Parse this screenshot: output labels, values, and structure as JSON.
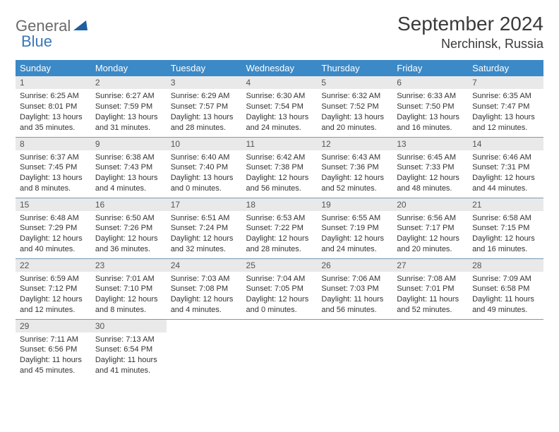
{
  "logo": {
    "text1": "General",
    "text2": "Blue"
  },
  "title": "September 2024",
  "location": "Nerchinsk, Russia",
  "day_headers": [
    "Sunday",
    "Monday",
    "Tuesday",
    "Wednesday",
    "Thursday",
    "Friday",
    "Saturday"
  ],
  "header_bg": "#3b89c7",
  "daynum_bg": "#e9e9e9",
  "row_border": "#7a99b2",
  "weeks": [
    [
      {
        "n": "1",
        "sr": "6:25 AM",
        "ss": "8:01 PM",
        "dl": "13 hours and 35 minutes."
      },
      {
        "n": "2",
        "sr": "6:27 AM",
        "ss": "7:59 PM",
        "dl": "13 hours and 31 minutes."
      },
      {
        "n": "3",
        "sr": "6:29 AM",
        "ss": "7:57 PM",
        "dl": "13 hours and 28 minutes."
      },
      {
        "n": "4",
        "sr": "6:30 AM",
        "ss": "7:54 PM",
        "dl": "13 hours and 24 minutes."
      },
      {
        "n": "5",
        "sr": "6:32 AM",
        "ss": "7:52 PM",
        "dl": "13 hours and 20 minutes."
      },
      {
        "n": "6",
        "sr": "6:33 AM",
        "ss": "7:50 PM",
        "dl": "13 hours and 16 minutes."
      },
      {
        "n": "7",
        "sr": "6:35 AM",
        "ss": "7:47 PM",
        "dl": "13 hours and 12 minutes."
      }
    ],
    [
      {
        "n": "8",
        "sr": "6:37 AM",
        "ss": "7:45 PM",
        "dl": "13 hours and 8 minutes."
      },
      {
        "n": "9",
        "sr": "6:38 AM",
        "ss": "7:43 PM",
        "dl": "13 hours and 4 minutes."
      },
      {
        "n": "10",
        "sr": "6:40 AM",
        "ss": "7:40 PM",
        "dl": "13 hours and 0 minutes."
      },
      {
        "n": "11",
        "sr": "6:42 AM",
        "ss": "7:38 PM",
        "dl": "12 hours and 56 minutes."
      },
      {
        "n": "12",
        "sr": "6:43 AM",
        "ss": "7:36 PM",
        "dl": "12 hours and 52 minutes."
      },
      {
        "n": "13",
        "sr": "6:45 AM",
        "ss": "7:33 PM",
        "dl": "12 hours and 48 minutes."
      },
      {
        "n": "14",
        "sr": "6:46 AM",
        "ss": "7:31 PM",
        "dl": "12 hours and 44 minutes."
      }
    ],
    [
      {
        "n": "15",
        "sr": "6:48 AM",
        "ss": "7:29 PM",
        "dl": "12 hours and 40 minutes."
      },
      {
        "n": "16",
        "sr": "6:50 AM",
        "ss": "7:26 PM",
        "dl": "12 hours and 36 minutes."
      },
      {
        "n": "17",
        "sr": "6:51 AM",
        "ss": "7:24 PM",
        "dl": "12 hours and 32 minutes."
      },
      {
        "n": "18",
        "sr": "6:53 AM",
        "ss": "7:22 PM",
        "dl": "12 hours and 28 minutes."
      },
      {
        "n": "19",
        "sr": "6:55 AM",
        "ss": "7:19 PM",
        "dl": "12 hours and 24 minutes."
      },
      {
        "n": "20",
        "sr": "6:56 AM",
        "ss": "7:17 PM",
        "dl": "12 hours and 20 minutes."
      },
      {
        "n": "21",
        "sr": "6:58 AM",
        "ss": "7:15 PM",
        "dl": "12 hours and 16 minutes."
      }
    ],
    [
      {
        "n": "22",
        "sr": "6:59 AM",
        "ss": "7:12 PM",
        "dl": "12 hours and 12 minutes."
      },
      {
        "n": "23",
        "sr": "7:01 AM",
        "ss": "7:10 PM",
        "dl": "12 hours and 8 minutes."
      },
      {
        "n": "24",
        "sr": "7:03 AM",
        "ss": "7:08 PM",
        "dl": "12 hours and 4 minutes."
      },
      {
        "n": "25",
        "sr": "7:04 AM",
        "ss": "7:05 PM",
        "dl": "12 hours and 0 minutes."
      },
      {
        "n": "26",
        "sr": "7:06 AM",
        "ss": "7:03 PM",
        "dl": "11 hours and 56 minutes."
      },
      {
        "n": "27",
        "sr": "7:08 AM",
        "ss": "7:01 PM",
        "dl": "11 hours and 52 minutes."
      },
      {
        "n": "28",
        "sr": "7:09 AM",
        "ss": "6:58 PM",
        "dl": "11 hours and 49 minutes."
      }
    ],
    [
      {
        "n": "29",
        "sr": "7:11 AM",
        "ss": "6:56 PM",
        "dl": "11 hours and 45 minutes."
      },
      {
        "n": "30",
        "sr": "7:13 AM",
        "ss": "6:54 PM",
        "dl": "11 hours and 41 minutes."
      },
      null,
      null,
      null,
      null,
      null
    ]
  ],
  "labels": {
    "sunrise": "Sunrise:",
    "sunset": "Sunset:",
    "daylight": "Daylight:"
  }
}
